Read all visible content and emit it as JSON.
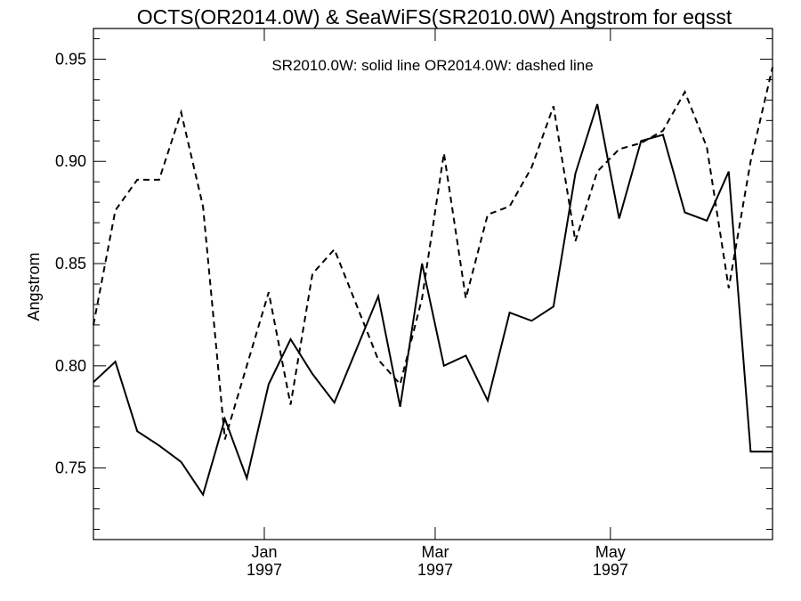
{
  "chart_data": {
    "type": "line",
    "title": "OCTS(OR2014.0W) & SeaWiFS(SR2010.0W)  Angstrom for eqsst",
    "annotation": "SR2010.0W: solid line   OR2014.0W: dashed line",
    "ylabel": "Angstrom",
    "xlabel": "",
    "ylim": [
      0.715,
      0.965
    ],
    "yticks": [
      "0.75",
      "0.80",
      "0.85",
      "0.90",
      "0.95"
    ],
    "xticks": [
      {
        "month": "Jan",
        "year": "1997",
        "pos": 7.8
      },
      {
        "month": "Mar",
        "year": "1997",
        "pos": 15.6
      },
      {
        "month": "May",
        "year": "1997",
        "pos": 23.6
      }
    ],
    "xlim": [
      0,
      31
    ],
    "grid": false,
    "series": [
      {
        "name": "SR2010.0W",
        "style": "solid",
        "color": "#000000",
        "x": [
          0,
          1,
          2,
          3,
          4,
          5,
          6,
          7,
          8,
          9,
          10,
          11,
          12,
          13,
          14,
          15,
          16,
          17,
          18,
          19,
          20,
          21,
          22,
          23,
          24,
          25,
          26,
          27,
          28,
          29,
          30,
          31
        ],
        "values": [
          0.792,
          0.802,
          0.768,
          0.761,
          0.753,
          0.737,
          0.774,
          0.745,
          0.791,
          0.813,
          0.796,
          0.782,
          0.808,
          0.834,
          0.78,
          0.85,
          0.8,
          0.805,
          0.783,
          0.826,
          0.822,
          0.829,
          0.894,
          0.928,
          0.872,
          0.91,
          0.913,
          0.875,
          0.871,
          0.895,
          0.758,
          0.758
        ]
      },
      {
        "name": "OR2014.0W",
        "style": "dashed",
        "color": "#000000",
        "x": [
          0,
          1,
          2,
          3,
          4,
          5,
          6,
          7,
          8,
          9,
          10,
          11,
          12,
          13,
          14,
          15,
          16,
          17,
          18,
          19,
          20,
          21,
          22,
          23,
          24,
          25,
          26,
          27,
          28,
          29,
          30,
          31
        ],
        "values": [
          0.82,
          0.876,
          0.891,
          0.891,
          0.924,
          0.878,
          0.764,
          0.8,
          0.836,
          0.781,
          0.845,
          0.857,
          0.83,
          0.803,
          0.791,
          0.833,
          0.904,
          0.833,
          0.874,
          0.878,
          0.897,
          0.927,
          0.861,
          0.895,
          0.906,
          0.909,
          0.915,
          0.934,
          0.907,
          0.838,
          0.9,
          0.946
        ]
      }
    ]
  }
}
